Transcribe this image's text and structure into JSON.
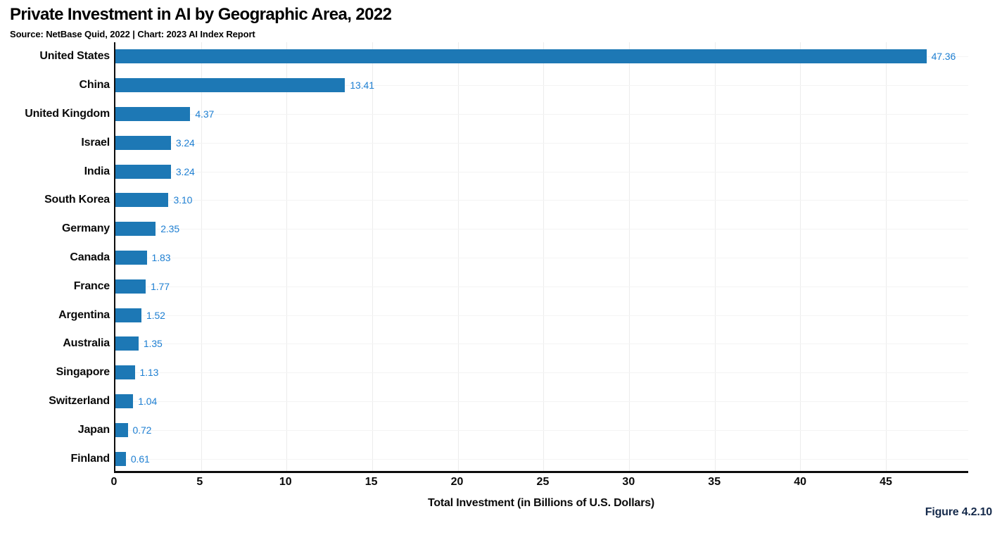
{
  "header": {
    "title": "Private Investment in AI by Geographic Area, 2022",
    "source": "Source: NetBase Quid, 2022 | Chart: 2023 AI Index Report"
  },
  "chart_data": {
    "type": "bar",
    "orientation": "horizontal",
    "title": "Private Investment in AI by Geographic Area, 2022",
    "categories": [
      "United States",
      "China",
      "United Kingdom",
      "Israel",
      "India",
      "South Korea",
      "Germany",
      "Canada",
      "France",
      "Argentina",
      "Australia",
      "Singapore",
      "Switzerland",
      "Japan",
      "Finland"
    ],
    "values": [
      47.36,
      13.41,
      4.37,
      3.24,
      3.24,
      3.1,
      2.35,
      1.83,
      1.77,
      1.52,
      1.35,
      1.13,
      1.04,
      0.72,
      0.61
    ],
    "value_labels": [
      "47.36",
      "13.41",
      "4.37",
      "3.24",
      "3.24",
      "3.10",
      "2.35",
      "1.83",
      "1.77",
      "1.52",
      "1.35",
      "1.13",
      "1.04",
      "0.72",
      "0.61"
    ],
    "xlabel": "Total Investment (in Billions of U.S. Dollars)",
    "xlim": [
      0,
      49.8
    ],
    "xticks": [
      0,
      5,
      10,
      15,
      20,
      25,
      30,
      35,
      40,
      45
    ],
    "grid": true,
    "legend": "none",
    "bar_color": "#1d78b5",
    "value_label_color": "#1e7fd2",
    "axis_color": "#0d0d0d"
  },
  "footer": {
    "figure_label": "Figure 4.2.10"
  }
}
